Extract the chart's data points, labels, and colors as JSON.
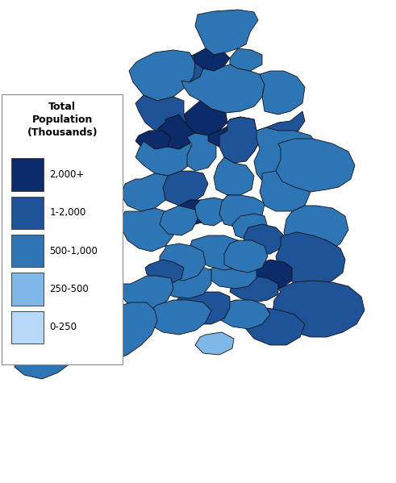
{
  "title": "Total\nPopulation\n(Thousands)",
  "legend_labels": [
    "2,000+",
    "1-2,000",
    "500-1,000",
    "250-500",
    "0-250"
  ],
  "legend_colors": [
    "#0d2b6b",
    "#1f5296",
    "#2e75b6",
    "#7eb8e8",
    "#b8d9f5"
  ],
  "background_color": "#ffffff",
  "border_color": "#111111",
  "legend_title": "Total\nPopulation\n(Thousands)"
}
